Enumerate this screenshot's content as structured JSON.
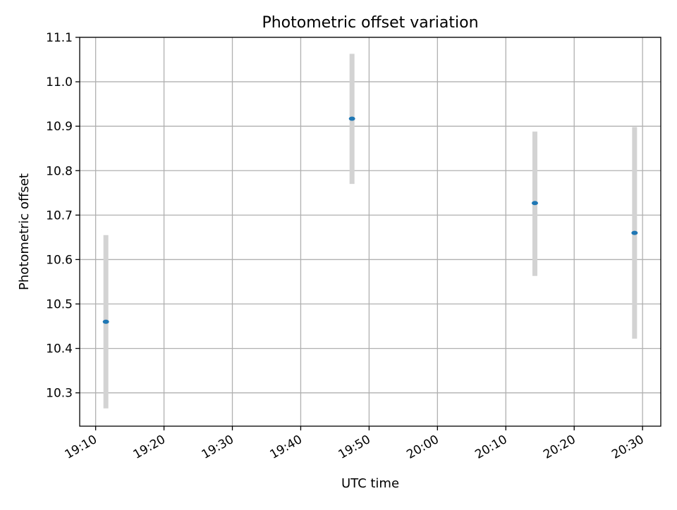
{
  "chart_data": {
    "type": "scatter",
    "title": "Photometric offset variation",
    "xlabel": "UTC time",
    "ylabel": "Photometric offset",
    "x_ticks": [
      "19:10",
      "19:20",
      "19:30",
      "19:40",
      "19:50",
      "20:00",
      "20:10",
      "20:20",
      "20:30"
    ],
    "y_ticks": [
      "10.3",
      "10.4",
      "10.5",
      "10.6",
      "10.7",
      "10.8",
      "10.9",
      "11.0",
      "11.1"
    ],
    "xlim": [
      "19:07:40",
      "20:32:40"
    ],
    "ylim": [
      10.225,
      11.1
    ],
    "grid": true,
    "points": [
      {
        "x": "19:11:30",
        "y": 10.46,
        "yerr_low": 10.265,
        "yerr_high": 10.655
      },
      {
        "x": "19:47:30",
        "y": 10.917,
        "yerr_low": 10.77,
        "yerr_high": 11.063
      },
      {
        "x": "20:14:15",
        "y": 10.727,
        "yerr_low": 10.563,
        "yerr_high": 10.888
      },
      {
        "x": "20:28:50",
        "y": 10.66,
        "yerr_low": 10.422,
        "yerr_high": 10.898
      }
    ],
    "colors": {
      "marker": "#1f77b4",
      "errorbar": "#d3d3d3",
      "grid": "#b0b0b0",
      "axis": "#000000"
    }
  }
}
